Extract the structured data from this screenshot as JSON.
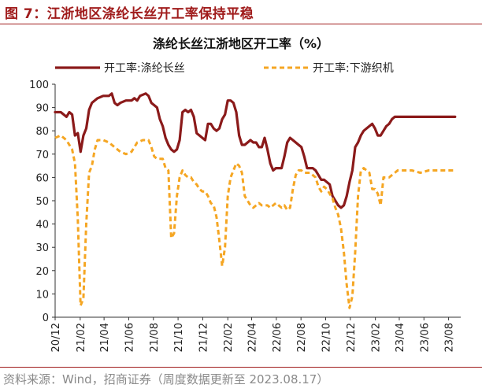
{
  "header": {
    "figure_title": "图 7：江浙地区涤纶长丝开工率保持平稳",
    "source": "资料来源：Wind，招商证券（周度数据更新至 2023.08.17）"
  },
  "colors": {
    "accent": "#a01c1c",
    "series1": "#8b1a1a",
    "series2": "#f5a623",
    "rule": "#a01c1c"
  },
  "chart_data": {
    "type": "line",
    "title": "涤纶长丝江浙地区开工率（%）",
    "ylim": [
      0,
      100
    ],
    "yticks": [
      0,
      10,
      20,
      30,
      40,
      50,
      60,
      70,
      80,
      90,
      100
    ],
    "xlim": [
      "2020-12-01",
      "2023-08-31"
    ],
    "xticks": [
      "20/12",
      "21/02",
      "21/04",
      "21/06",
      "21/08",
      "21/10",
      "21/12",
      "22/02",
      "22/04",
      "22/06",
      "22/08",
      "22/10",
      "22/12",
      "23/02",
      "23/04",
      "23/06",
      "23/08"
    ],
    "grid": false,
    "legend": "top",
    "series": [
      {
        "name": "开工率:涤纶长丝",
        "style": "solid",
        "points": [
          [
            "2020-12-01",
            88
          ],
          [
            "2020-12-15",
            88
          ],
          [
            "2020-12-29",
            86
          ],
          [
            "2021-01-05",
            88
          ],
          [
            "2021-01-12",
            87
          ],
          [
            "2021-01-19",
            78
          ],
          [
            "2021-01-26",
            79
          ],
          [
            "2021-02-02",
            71
          ],
          [
            "2021-02-09",
            78
          ],
          [
            "2021-02-16",
            81
          ],
          [
            "2021-02-23",
            89
          ],
          [
            "2021-03-02",
            92
          ],
          [
            "2021-03-09",
            93
          ],
          [
            "2021-03-16",
            94
          ],
          [
            "2021-03-30",
            95
          ],
          [
            "2021-04-13",
            95
          ],
          [
            "2021-04-20",
            96
          ],
          [
            "2021-04-27",
            92
          ],
          [
            "2021-05-04",
            91
          ],
          [
            "2021-05-11",
            92
          ],
          [
            "2021-05-25",
            93
          ],
          [
            "2021-06-08",
            93
          ],
          [
            "2021-06-15",
            94
          ],
          [
            "2021-06-22",
            93
          ],
          [
            "2021-06-29",
            95
          ],
          [
            "2021-07-13",
            96
          ],
          [
            "2021-07-20",
            95
          ],
          [
            "2021-07-27",
            92
          ],
          [
            "2021-08-03",
            91
          ],
          [
            "2021-08-10",
            90
          ],
          [
            "2021-08-17",
            85
          ],
          [
            "2021-08-24",
            82
          ],
          [
            "2021-08-31",
            77
          ],
          [
            "2021-09-07",
            74
          ],
          [
            "2021-09-14",
            72
          ],
          [
            "2021-09-21",
            71
          ],
          [
            "2021-09-28",
            72
          ],
          [
            "2021-10-05",
            76
          ],
          [
            "2021-10-12",
            88
          ],
          [
            "2021-10-19",
            89
          ],
          [
            "2021-10-26",
            88
          ],
          [
            "2021-11-02",
            89
          ],
          [
            "2021-11-09",
            86
          ],
          [
            "2021-11-16",
            79
          ],
          [
            "2021-11-23",
            78
          ],
          [
            "2021-11-30",
            77
          ],
          [
            "2021-12-07",
            76
          ],
          [
            "2021-12-14",
            83
          ],
          [
            "2021-12-21",
            83
          ],
          [
            "2021-12-28",
            81
          ],
          [
            "2022-01-04",
            80
          ],
          [
            "2022-01-11",
            81
          ],
          [
            "2022-01-18",
            85
          ],
          [
            "2022-01-25",
            87
          ],
          [
            "2022-02-01",
            93
          ],
          [
            "2022-02-08",
            93
          ],
          [
            "2022-02-15",
            92
          ],
          [
            "2022-02-22",
            88
          ],
          [
            "2022-03-01",
            78
          ],
          [
            "2022-03-08",
            74
          ],
          [
            "2022-03-15",
            74
          ],
          [
            "2022-03-22",
            75
          ],
          [
            "2022-03-29",
            76
          ],
          [
            "2022-04-05",
            75
          ],
          [
            "2022-04-12",
            75
          ],
          [
            "2022-04-19",
            73
          ],
          [
            "2022-04-26",
            73
          ],
          [
            "2022-05-03",
            77
          ],
          [
            "2022-05-10",
            72
          ],
          [
            "2022-05-17",
            66
          ],
          [
            "2022-05-24",
            63
          ],
          [
            "2022-05-31",
            64
          ],
          [
            "2022-06-07",
            64
          ],
          [
            "2022-06-14",
            64
          ],
          [
            "2022-06-21",
            69
          ],
          [
            "2022-06-28",
            75
          ],
          [
            "2022-07-05",
            77
          ],
          [
            "2022-07-12",
            76
          ],
          [
            "2022-07-19",
            75
          ],
          [
            "2022-07-26",
            74
          ],
          [
            "2022-08-02",
            73
          ],
          [
            "2022-08-09",
            69
          ],
          [
            "2022-08-16",
            64
          ],
          [
            "2022-08-23",
            64
          ],
          [
            "2022-08-30",
            64
          ],
          [
            "2022-09-06",
            63
          ],
          [
            "2022-09-13",
            61
          ],
          [
            "2022-09-20",
            59
          ],
          [
            "2022-09-27",
            59
          ],
          [
            "2022-10-04",
            58
          ],
          [
            "2022-10-11",
            57
          ],
          [
            "2022-10-18",
            52
          ],
          [
            "2022-10-25",
            50
          ],
          [
            "2022-11-01",
            48
          ],
          [
            "2022-11-08",
            47
          ],
          [
            "2022-11-15",
            48
          ],
          [
            "2022-11-22",
            52
          ],
          [
            "2022-11-29",
            58
          ],
          [
            "2022-12-06",
            63
          ],
          [
            "2022-12-13",
            73
          ],
          [
            "2022-12-20",
            75
          ],
          [
            "2022-12-27",
            78
          ],
          [
            "2023-01-03",
            80
          ],
          [
            "2023-01-10",
            81
          ],
          [
            "2023-01-17",
            82
          ],
          [
            "2023-01-24",
            83
          ],
          [
            "2023-01-31",
            81
          ],
          [
            "2023-02-07",
            78
          ],
          [
            "2023-02-14",
            78
          ],
          [
            "2023-02-21",
            80
          ],
          [
            "2023-02-28",
            82
          ],
          [
            "2023-03-07",
            83
          ],
          [
            "2023-03-14",
            85
          ],
          [
            "2023-03-21",
            86
          ],
          [
            "2023-03-28",
            86
          ],
          [
            "2023-04-04",
            86
          ],
          [
            "2023-05-02",
            86
          ],
          [
            "2023-06-06",
            86
          ],
          [
            "2023-07-04",
            86
          ],
          [
            "2023-07-25",
            86
          ],
          [
            "2023-08-17",
            86
          ]
        ]
      },
      {
        "name": "开工率:下游织机",
        "style": "dashed",
        "points": [
          [
            "2020-12-01",
            77
          ],
          [
            "2020-12-15",
            78
          ],
          [
            "2020-12-29",
            76
          ],
          [
            "2021-01-05",
            74
          ],
          [
            "2021-01-12",
            72
          ],
          [
            "2021-01-19",
            66
          ],
          [
            "2021-01-26",
            42
          ],
          [
            "2021-02-02",
            5
          ],
          [
            "2021-02-09",
            8
          ],
          [
            "2021-02-16",
            40
          ],
          [
            "2021-02-23",
            62
          ],
          [
            "2021-03-02",
            65
          ],
          [
            "2021-03-09",
            72
          ],
          [
            "2021-03-16",
            76
          ],
          [
            "2021-03-30",
            76
          ],
          [
            "2021-04-13",
            75
          ],
          [
            "2021-04-27",
            73
          ],
          [
            "2021-05-11",
            71
          ],
          [
            "2021-05-25",
            70
          ],
          [
            "2021-06-08",
            71
          ],
          [
            "2021-06-22",
            75
          ],
          [
            "2021-07-06",
            76
          ],
          [
            "2021-07-20",
            76
          ],
          [
            "2021-07-27",
            73
          ],
          [
            "2021-08-03",
            69
          ],
          [
            "2021-08-10",
            68
          ],
          [
            "2021-08-17",
            68
          ],
          [
            "2021-08-24",
            68
          ],
          [
            "2021-08-31",
            64
          ],
          [
            "2021-09-07",
            63
          ],
          [
            "2021-09-14",
            34
          ],
          [
            "2021-09-21",
            36
          ],
          [
            "2021-09-28",
            52
          ],
          [
            "2021-10-05",
            60
          ],
          [
            "2021-10-12",
            63
          ],
          [
            "2021-10-19",
            61
          ],
          [
            "2021-10-26",
            60
          ],
          [
            "2021-11-02",
            60
          ],
          [
            "2021-11-09",
            58
          ],
          [
            "2021-11-16",
            57
          ],
          [
            "2021-11-23",
            55
          ],
          [
            "2021-11-30",
            54
          ],
          [
            "2021-12-07",
            54
          ],
          [
            "2021-12-14",
            52
          ],
          [
            "2021-12-21",
            49
          ],
          [
            "2021-12-28",
            48
          ],
          [
            "2022-01-04",
            43
          ],
          [
            "2022-01-11",
            33
          ],
          [
            "2022-01-18",
            22
          ],
          [
            "2022-01-25",
            30
          ],
          [
            "2022-02-01",
            52
          ],
          [
            "2022-02-08",
            60
          ],
          [
            "2022-02-15",
            63
          ],
          [
            "2022-02-22",
            66
          ],
          [
            "2022-03-01",
            65
          ],
          [
            "2022-03-08",
            62
          ],
          [
            "2022-03-15",
            52
          ],
          [
            "2022-03-22",
            50
          ],
          [
            "2022-03-29",
            48
          ],
          [
            "2022-04-05",
            47
          ],
          [
            "2022-04-12",
            48
          ],
          [
            "2022-04-19",
            49
          ],
          [
            "2022-04-26",
            48
          ],
          [
            "2022-05-03",
            48
          ],
          [
            "2022-05-10",
            48
          ],
          [
            "2022-05-17",
            47
          ],
          [
            "2022-05-24",
            48
          ],
          [
            "2022-05-31",
            49
          ],
          [
            "2022-06-07",
            48
          ],
          [
            "2022-06-14",
            47
          ],
          [
            "2022-06-21",
            48
          ],
          [
            "2022-06-28",
            46
          ],
          [
            "2022-07-05",
            47
          ],
          [
            "2022-07-12",
            55
          ],
          [
            "2022-07-19",
            61
          ],
          [
            "2022-07-26",
            63
          ],
          [
            "2022-08-02",
            63
          ],
          [
            "2022-08-09",
            62
          ],
          [
            "2022-08-16",
            62
          ],
          [
            "2022-08-23",
            62
          ],
          [
            "2022-08-30",
            61
          ],
          [
            "2022-09-06",
            60
          ],
          [
            "2022-09-13",
            56
          ],
          [
            "2022-09-20",
            54
          ],
          [
            "2022-09-27",
            56
          ],
          [
            "2022-10-04",
            55
          ],
          [
            "2022-10-11",
            53
          ],
          [
            "2022-10-18",
            51
          ],
          [
            "2022-10-25",
            47
          ],
          [
            "2022-11-01",
            44
          ],
          [
            "2022-11-08",
            38
          ],
          [
            "2022-11-15",
            28
          ],
          [
            "2022-11-22",
            14
          ],
          [
            "2022-11-29",
            4
          ],
          [
            "2022-12-06",
            9
          ],
          [
            "2022-12-13",
            28
          ],
          [
            "2022-12-20",
            52
          ],
          [
            "2022-12-27",
            63
          ],
          [
            "2023-01-03",
            64
          ],
          [
            "2023-01-10",
            63
          ],
          [
            "2023-01-17",
            62
          ],
          [
            "2023-01-24",
            55
          ],
          [
            "2023-01-31",
            55
          ],
          [
            "2023-02-07",
            53
          ],
          [
            "2023-02-14",
            48
          ],
          [
            "2023-02-21",
            60
          ],
          [
            "2023-02-28",
            60
          ],
          [
            "2023-03-07",
            60
          ],
          [
            "2023-03-14",
            61
          ],
          [
            "2023-03-21",
            62
          ],
          [
            "2023-03-28",
            63
          ],
          [
            "2023-04-11",
            63
          ],
          [
            "2023-05-02",
            63
          ],
          [
            "2023-05-23",
            62
          ],
          [
            "2023-06-13",
            63
          ],
          [
            "2023-07-04",
            63
          ],
          [
            "2023-07-25",
            63
          ],
          [
            "2023-08-17",
            63
          ]
        ]
      }
    ]
  }
}
